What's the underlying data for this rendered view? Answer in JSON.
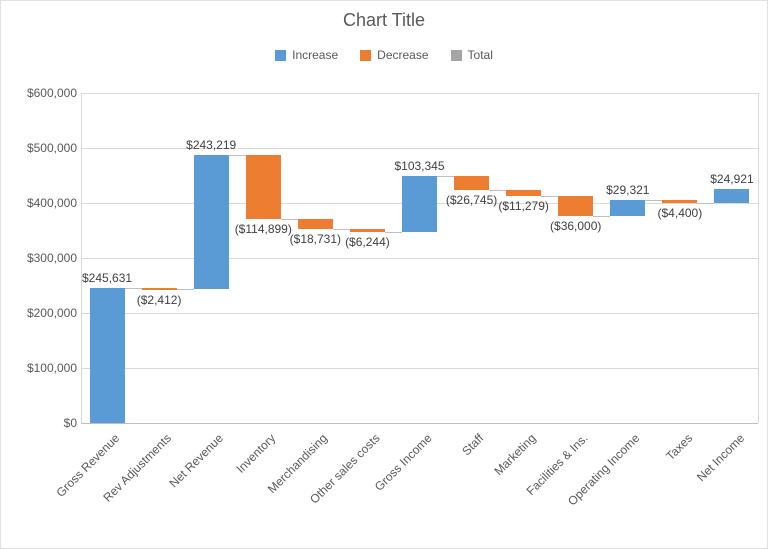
{
  "title": "Chart Title",
  "legend": {
    "position": "top",
    "items": [
      {
        "label": "Increase",
        "key": "increase"
      },
      {
        "label": "Decrease",
        "key": "decrease"
      },
      {
        "label": "Total",
        "key": "total"
      }
    ]
  },
  "colors": {
    "increase": "#5B9BD5",
    "decrease": "#ED7D31",
    "total": "#A5A5A5",
    "gridline": "#D9D9D9",
    "axis_line": "#BFBFBF",
    "connector": "#BFBFBF",
    "text": "#595959",
    "data_label": "#404040"
  },
  "chart_data": {
    "type": "bar",
    "subtype": "waterfall",
    "title": "Chart Title",
    "xlabel": "",
    "ylabel": "",
    "ylim": [
      0,
      600000
    ],
    "grid": true,
    "legend_position": "top",
    "yticks": [
      {
        "value": 0,
        "label": "$0"
      },
      {
        "value": 100000,
        "label": "$100,000"
      },
      {
        "value": 200000,
        "label": "$200,000"
      },
      {
        "value": 300000,
        "label": "$300,000"
      },
      {
        "value": 400000,
        "label": "$400,000"
      },
      {
        "value": 500000,
        "label": "$500,000"
      },
      {
        "value": 600000,
        "label": "$600,000"
      }
    ],
    "categories": [
      "Gross Revenue",
      "Rev Adjustments",
      "Net Revenue",
      "Inventory",
      "Merchandising",
      "Other sales costs",
      "Gross Income",
      "Staff",
      "Marketing",
      "Facilities & Ins.",
      "Operating Income",
      "Taxes",
      "Net Income"
    ],
    "bars": [
      {
        "category": "Gross Revenue",
        "name": "gross-revenue",
        "direction": "increase",
        "change": 245631,
        "start": 0,
        "end": 245631,
        "label": "$245,631"
      },
      {
        "category": "Rev Adjustments",
        "name": "rev-adjustments",
        "direction": "decrease",
        "change": -2412,
        "start": 245631,
        "end": 243219,
        "label": "($2,412)"
      },
      {
        "category": "Net Revenue",
        "name": "net-revenue",
        "direction": "increase",
        "change": 243219,
        "start": 243219,
        "end": 486438,
        "label": "$243,219"
      },
      {
        "category": "Inventory",
        "name": "inventory",
        "direction": "decrease",
        "change": -114899,
        "start": 486438,
        "end": 371539,
        "label": "($114,899)"
      },
      {
        "category": "Merchandising",
        "name": "merchandising",
        "direction": "decrease",
        "change": -18731,
        "start": 371539,
        "end": 352808,
        "label": "($18,731)"
      },
      {
        "category": "Other sales costs",
        "name": "other-sales-costs",
        "direction": "decrease",
        "change": -6244,
        "start": 352808,
        "end": 346564,
        "label": "($6,244)"
      },
      {
        "category": "Gross Income",
        "name": "gross-income",
        "direction": "increase",
        "change": 103345,
        "start": 346564,
        "end": 449909,
        "label": "$103,345"
      },
      {
        "category": "Staff",
        "name": "staff",
        "direction": "decrease",
        "change": -26745,
        "start": 449909,
        "end": 423164,
        "label": "($26,745)"
      },
      {
        "category": "Marketing",
        "name": "marketing",
        "direction": "decrease",
        "change": -11279,
        "start": 423164,
        "end": 411885,
        "label": "($11,279)"
      },
      {
        "category": "Facilities & Ins.",
        "name": "facilities-ins",
        "direction": "decrease",
        "change": -36000,
        "start": 411885,
        "end": 375885,
        "label": "($36,000)"
      },
      {
        "category": "Operating Income",
        "name": "operating-income",
        "direction": "increase",
        "change": 29321,
        "start": 375885,
        "end": 405206,
        "label": "$29,321"
      },
      {
        "category": "Taxes",
        "name": "taxes",
        "direction": "decrease",
        "change": -4400,
        "start": 405206,
        "end": 400806,
        "label": "($4,400)"
      },
      {
        "category": "Net Income",
        "name": "net-income",
        "direction": "increase",
        "change": 24921,
        "start": 400806,
        "end": 425727,
        "label": "$24,921"
      }
    ]
  }
}
